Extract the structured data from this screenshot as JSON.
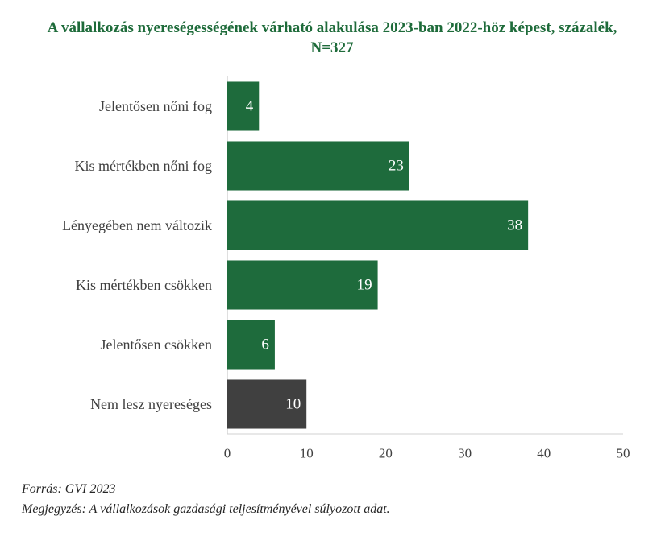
{
  "chart_data": {
    "type": "bar",
    "orientation": "horizontal",
    "title": "A vállalkozás nyereségességének várható alakulása 2023-ban 2022-höz képest, százalék, N=327",
    "title_color": "#1e6b3a",
    "categories": [
      "Jelentősen nőni fog",
      "Kis mértékben nőni fog",
      "Lényegében nem változik",
      "Kis mértékben csökken",
      "Jelentősen csökken",
      "Nem lesz nyereséges"
    ],
    "values": [
      4,
      23,
      38,
      19,
      6,
      10
    ],
    "bar_colors": [
      "#1e6b3c",
      "#1e6b3c",
      "#1e6b3c",
      "#1e6b3c",
      "#1e6b3c",
      "#404040"
    ],
    "xlabel": "",
    "ylabel": "",
    "xlim": [
      0,
      50
    ],
    "xticks": [
      0,
      10,
      20,
      30,
      40,
      50
    ],
    "grid": false,
    "legend": "none"
  },
  "footer": {
    "source": "Forrás: GVI 2023",
    "note": "Megjegyzés: A vállalkozások gazdasági teljesítményével súlyozott adat."
  }
}
